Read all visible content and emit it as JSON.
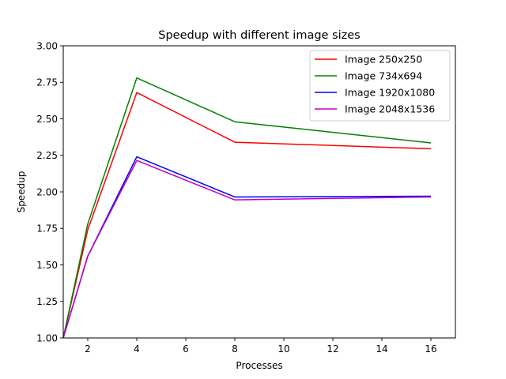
{
  "chart_data": {
    "type": "line",
    "title": "Speedup with different image sizes",
    "xlabel": "Processes",
    "ylabel": "Speedup",
    "x": [
      1,
      2,
      4,
      8,
      16
    ],
    "xlim": [
      1,
      17
    ],
    "ylim": [
      1.0,
      3.0
    ],
    "xticks": [
      2,
      4,
      6,
      8,
      10,
      12,
      14,
      16
    ],
    "yticks": [
      1.0,
      1.25,
      1.5,
      1.75,
      2.0,
      2.25,
      2.5,
      2.75,
      3.0
    ],
    "ytick_labels": [
      "1.00",
      "1.25",
      "1.50",
      "1.75",
      "2.00",
      "2.25",
      "2.50",
      "2.75",
      "3.00"
    ],
    "grid": false,
    "legend_position": "top-right",
    "series": [
      {
        "name": "Image 250x250",
        "color": "#ff0000",
        "values": [
          1.0,
          1.74,
          2.68,
          2.34,
          2.295
        ]
      },
      {
        "name": "Image 734x694",
        "color": "#008000",
        "values": [
          1.0,
          1.78,
          2.78,
          2.48,
          2.335
        ]
      },
      {
        "name": "Image 1920x1080",
        "color": "#0000ff",
        "values": [
          1.0,
          1.56,
          2.24,
          1.965,
          1.97
        ]
      },
      {
        "name": "Image 2048x1536",
        "color": "#bf00bf",
        "values": [
          1.0,
          1.56,
          2.215,
          1.945,
          1.965
        ]
      }
    ]
  }
}
